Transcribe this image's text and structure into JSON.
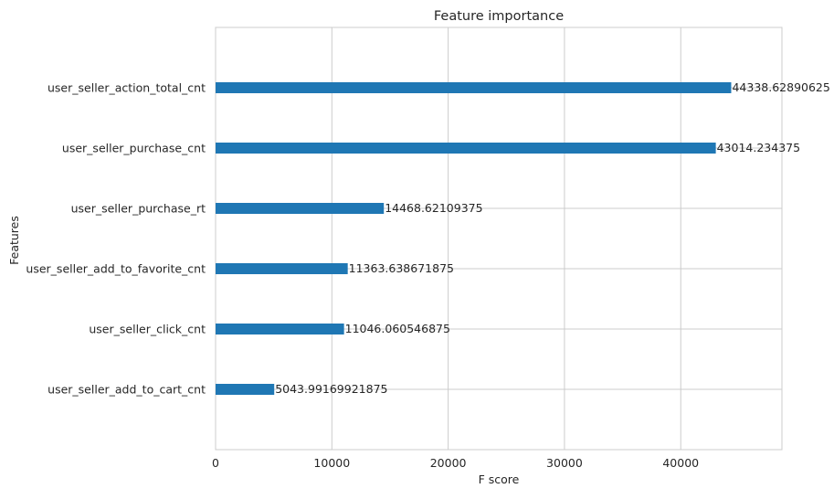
{
  "chart_data": {
    "type": "bar",
    "orientation": "horizontal",
    "title": "Feature importance",
    "xlabel": "F score",
    "ylabel": "Features",
    "xlim": [
      0,
      48700
    ],
    "xticks": [
      0,
      10000,
      20000,
      30000,
      40000
    ],
    "grid": true,
    "bar_color": "#1f77b4",
    "categories": [
      "user_seller_action_total_cnt",
      "user_seller_purchase_cnt",
      "user_seller_purchase_rt",
      "user_seller_add_to_favorite_cnt",
      "user_seller_click_cnt",
      "user_seller_add_to_cart_cnt"
    ],
    "values": [
      44338.62890625,
      43014.234375,
      14468.62109375,
      11363.638671875,
      11046.060546875,
      5043.99169921875
    ],
    "value_labels": [
      "44338.62890625",
      "43014.234375",
      "14468.62109375",
      "11363.638671875",
      "11046.060546875",
      "5043.99169921875"
    ]
  }
}
